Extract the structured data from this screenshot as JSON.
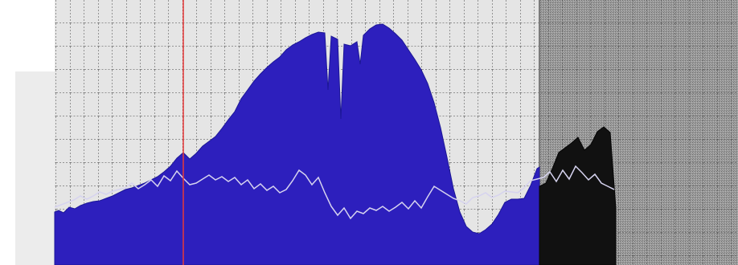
{
  "colors": {
    "grid_background_left": "#e5e5e5",
    "grid_background_right": "#9a9a9a",
    "grid_lines": "#1b1b1b",
    "histogram_fill": "#2d1fbd",
    "histogram_edge": "#1c1796",
    "overlay_trace": "#d6d3ef",
    "cursor_line": "#e63a3a",
    "right_histogram_fill": "#111111"
  },
  "icons": {
    "cursor": "vertical-red-cursor"
  },
  "cursor": {
    "position_fraction": 0.248
  }
}
